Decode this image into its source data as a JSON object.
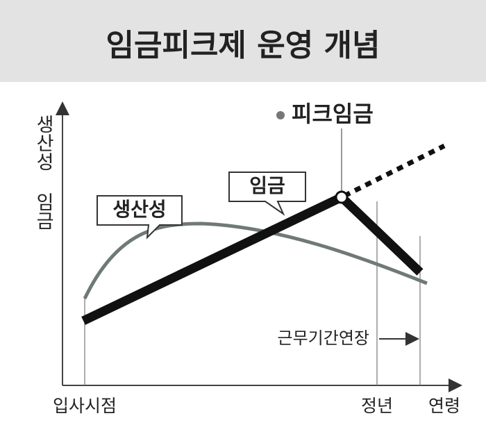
{
  "header": {
    "title": "임금피크제 운영 개념"
  },
  "diagram": {
    "y_axis_label": "생산성 임금",
    "peak_label": "피크임금",
    "wage_label": "임금",
    "productivity_label": "생산성",
    "extension_label": "근무기간연장",
    "x_labels": {
      "start": "입사시점",
      "retirement": "정년",
      "age": "연령"
    }
  }
}
